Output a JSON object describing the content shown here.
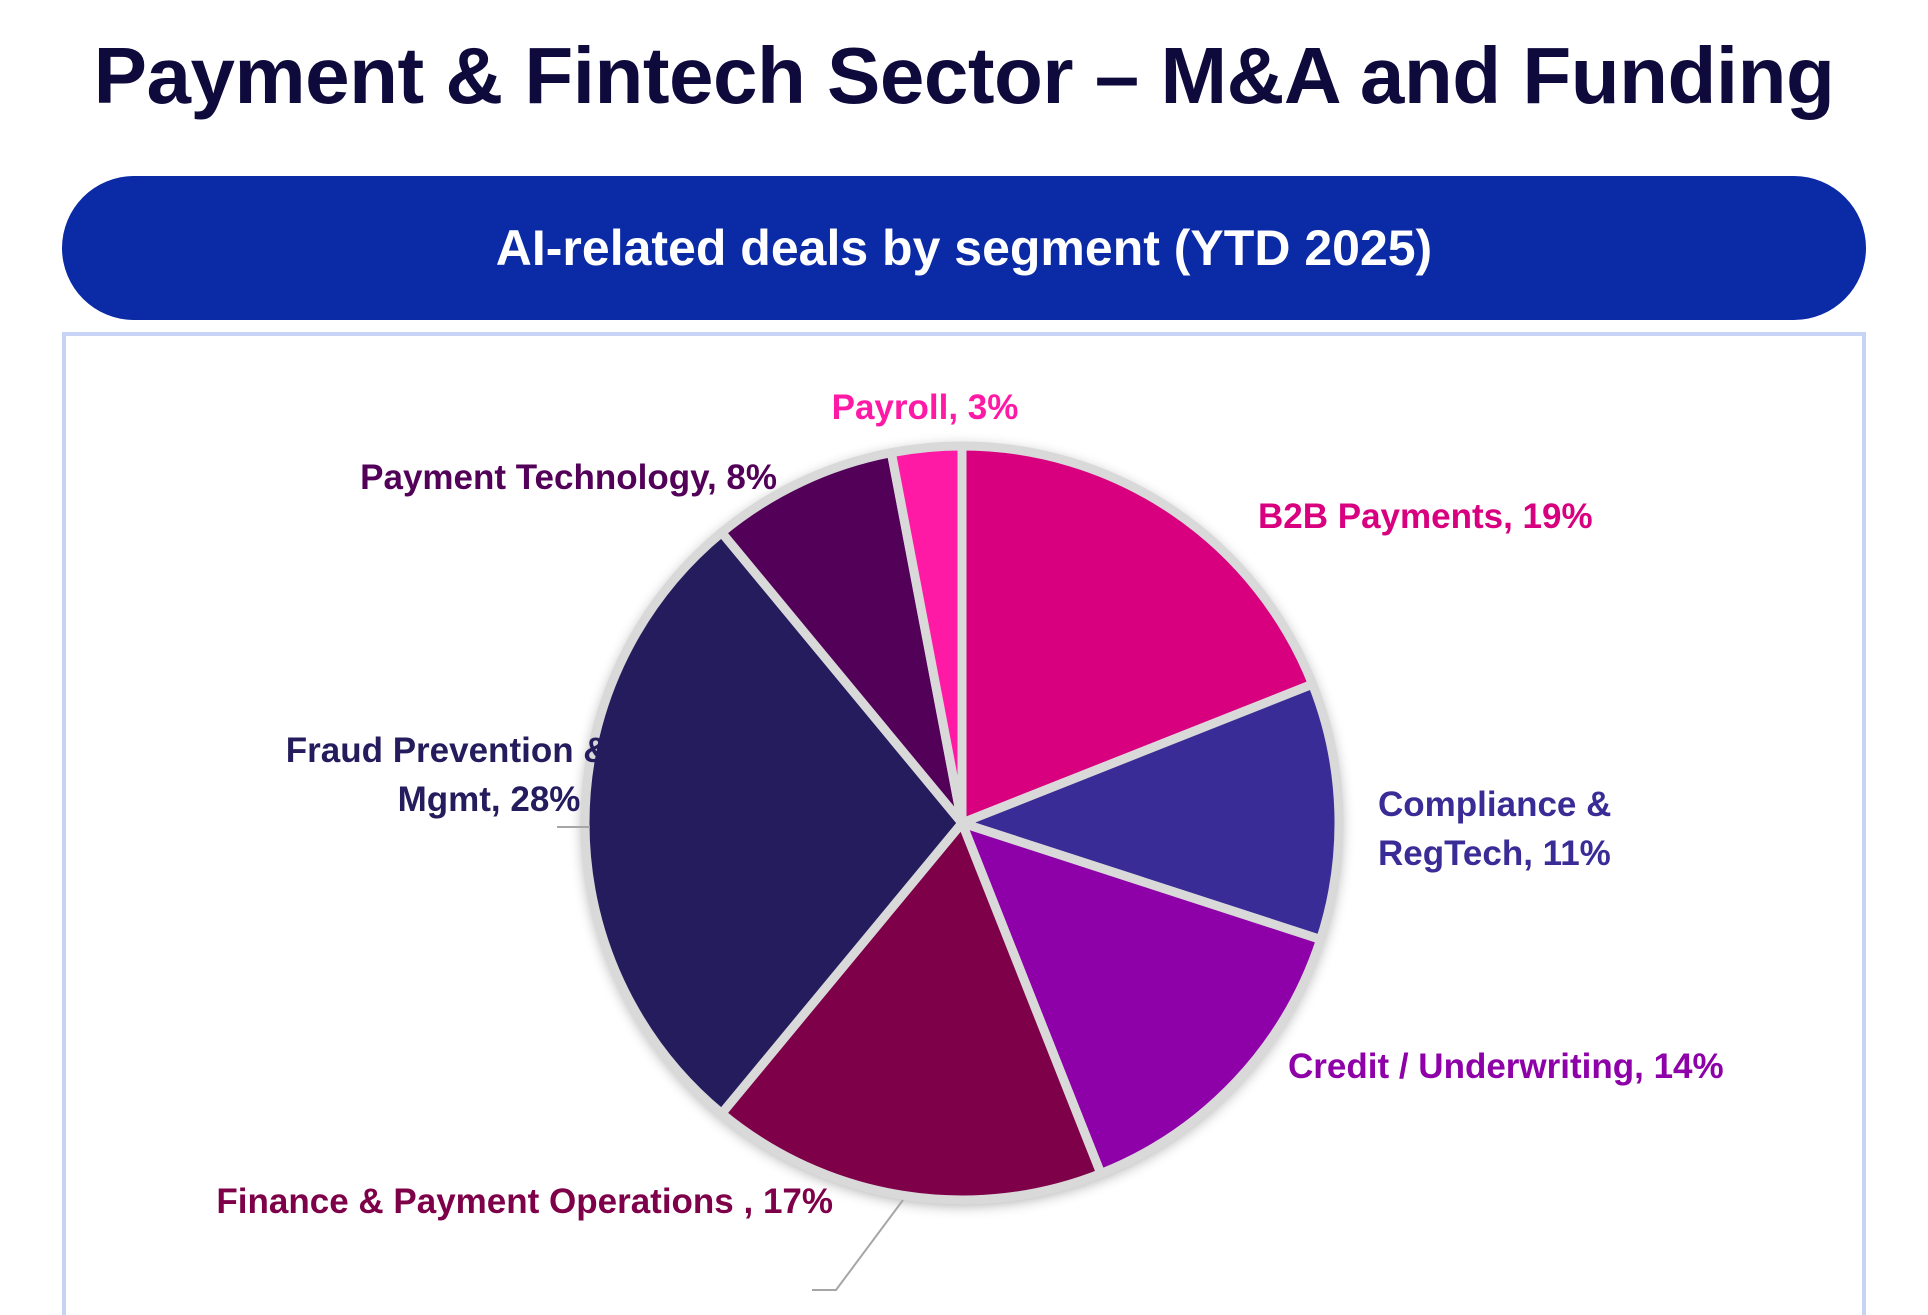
{
  "page": {
    "title": "Payment & Fintech Sector – M&A and Funding"
  },
  "banner": {
    "title": "AI-related deals by segment (YTD 2025)",
    "color": "#0a2aa6"
  },
  "chart_data": {
    "type": "pie",
    "title": "AI-related deals by segment (YTD 2025)",
    "unit": "%",
    "slices": [
      {
        "label": "B2B Payments, 19%",
        "value": 19,
        "color": "#d8007f"
      },
      {
        "label": "Compliance & RegTech, 11%",
        "value": 11,
        "color": "#3a2c96"
      },
      {
        "label": "Credit / Underwriting, 14%",
        "value": 14,
        "color": "#8e00a8"
      },
      {
        "label": "Finance & Payment Operations , 17%",
        "value": 17,
        "color": "#7e0048"
      },
      {
        "label": "Fraud Prevention & Risk Mgmt, 28%",
        "value": 28,
        "color": "#241c5c"
      },
      {
        "label": "Payment Technology, 8%",
        "value": 8,
        "color": "#520058"
      },
      {
        "label": "Payroll, 3%",
        "value": 3,
        "color": "#ff1aa6"
      }
    ],
    "start_angle": "12 o'clock",
    "direction": "clockwise",
    "legend": "none (data labels)"
  }
}
